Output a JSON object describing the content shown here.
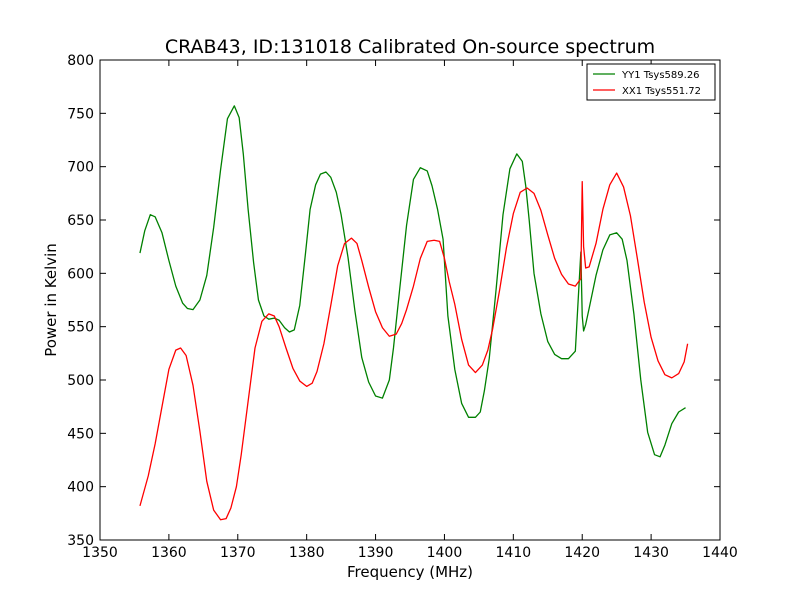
{
  "chart_data": {
    "type": "line",
    "title": "CRAB43, ID:131018 Calibrated On-source spectrum",
    "xlabel": "Frequency (MHz)",
    "ylabel": "Power in Kelvin",
    "xlim": [
      1350,
      1440
    ],
    "ylim": [
      350,
      800
    ],
    "xticks": [
      1350,
      1360,
      1370,
      1380,
      1390,
      1400,
      1410,
      1420,
      1430,
      1440
    ],
    "yticks": [
      350,
      400,
      450,
      500,
      550,
      600,
      650,
      700,
      750,
      800
    ],
    "grid": false,
    "legend_position": "top-right",
    "series": [
      {
        "name": "YY1 Tsys589.26",
        "color": "#008000",
        "x": [
          1355.8,
          1356.5,
          1357.3,
          1358.0,
          1359.0,
          1360.0,
          1361.0,
          1362.0,
          1362.7,
          1363.5,
          1364.5,
          1365.5,
          1366.5,
          1367.5,
          1368.5,
          1369.5,
          1370.2,
          1370.8,
          1371.5,
          1372.3,
          1373.0,
          1373.8,
          1374.5,
          1375.3,
          1376.0,
          1376.8,
          1377.5,
          1378.2,
          1379.0,
          1379.8,
          1380.5,
          1381.3,
          1382.0,
          1382.8,
          1383.5,
          1384.3,
          1385.0,
          1386.0,
          1387.0,
          1388.0,
          1389.0,
          1390.0,
          1391.0,
          1392.0,
          1392.6,
          1393.5,
          1394.5,
          1395.5,
          1396.5,
          1397.5,
          1398.2,
          1399.0,
          1399.8,
          1400.5,
          1401.5,
          1402.5,
          1403.5,
          1404.5,
          1405.2,
          1405.8,
          1406.5,
          1407.5,
          1408.5,
          1409.5,
          1410.5,
          1411.3,
          1411.8,
          1412.3,
          1413.0,
          1414.0,
          1415.0,
          1416.0,
          1417.0,
          1418.0,
          1419.0,
          1419.8,
          1420.0,
          1420.2,
          1420.5,
          1421.0,
          1422.0,
          1423.0,
          1424.0,
          1425.0,
          1425.8,
          1426.5,
          1427.5,
          1428.5,
          1429.5,
          1430.5,
          1431.3,
          1432.0,
          1433.0,
          1434.0,
          1435.0
        ],
        "values": [
          619,
          640,
          655,
          653,
          638,
          612,
          588,
          572,
          567,
          566,
          575,
          598,
          643,
          697,
          745,
          757,
          746,
          712,
          660,
          610,
          575,
          560,
          557,
          558,
          556,
          549,
          545,
          547,
          570,
          617,
          660,
          683,
          693,
          695,
          690,
          676,
          655,
          615,
          565,
          521,
          498,
          485,
          483,
          500,
          530,
          585,
          645,
          688,
          699,
          696,
          682,
          660,
          632,
          560,
          510,
          478,
          465,
          465,
          470,
          490,
          520,
          585,
          655,
          698,
          712,
          705,
          682,
          650,
          600,
          562,
          536,
          524,
          520,
          520,
          527,
          620,
          560,
          546,
          552,
          567,
          598,
          622,
          636,
          638,
          632,
          612,
          562,
          500,
          451,
          430,
          428,
          439,
          459,
          470,
          474
        ]
      },
      {
        "name": "XX1 Tsys551.72",
        "color": "#ff0000",
        "x": [
          1355.8,
          1357.0,
          1358.0,
          1359.0,
          1360.0,
          1361.0,
          1361.7,
          1362.5,
          1363.5,
          1364.5,
          1365.5,
          1366.5,
          1367.5,
          1368.3,
          1369.0,
          1369.8,
          1370.5,
          1371.5,
          1372.5,
          1373.5,
          1374.5,
          1375.3,
          1376.0,
          1377.0,
          1378.0,
          1379.0,
          1380.0,
          1380.8,
          1381.5,
          1382.5,
          1383.5,
          1384.5,
          1385.5,
          1386.5,
          1387.3,
          1388.0,
          1389.0,
          1390.0,
          1391.0,
          1392.0,
          1393.0,
          1393.8,
          1394.5,
          1395.5,
          1396.5,
          1397.5,
          1398.5,
          1399.3,
          1400.0,
          1400.7,
          1401.5,
          1402.5,
          1403.5,
          1404.5,
          1405.5,
          1406.3,
          1407.0,
          1408.0,
          1409.0,
          1410.0,
          1411.0,
          1412.0,
          1413.0,
          1414.0,
          1415.0,
          1416.0,
          1417.0,
          1418.0,
          1419.0,
          1419.8,
          1420.0,
          1420.2,
          1420.5,
          1421.0,
          1422.0,
          1423.0,
          1424.0,
          1425.0,
          1426.0,
          1427.0,
          1428.0,
          1429.0,
          1430.0,
          1431.0,
          1432.0,
          1433.0,
          1434.0,
          1434.8,
          1435.3
        ],
        "values": [
          382,
          410,
          440,
          475,
          510,
          528,
          530,
          523,
          495,
          452,
          405,
          378,
          369,
          370,
          380,
          400,
          430,
          480,
          530,
          555,
          562,
          560,
          550,
          530,
          511,
          499,
          494,
          497,
          508,
          534,
          570,
          607,
          628,
          633,
          628,
          612,
          587,
          564,
          549,
          541,
          543,
          553,
          566,
          588,
          614,
          630,
          631,
          630,
          614,
          592,
          571,
          538,
          514,
          507,
          514,
          528,
          548,
          584,
          624,
          656,
          676,
          680,
          675,
          659,
          636,
          614,
          599,
          590,
          588,
          595,
          686,
          625,
          605,
          606,
          628,
          660,
          683,
          694,
          681,
          654,
          614,
          573,
          540,
          518,
          505,
          502,
          506,
          517,
          534
        ]
      }
    ]
  }
}
